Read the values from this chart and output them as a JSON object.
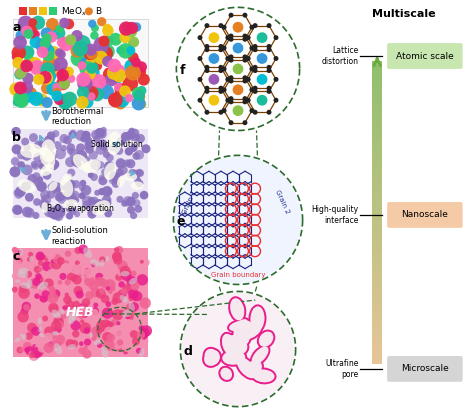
{
  "title": "Multiscale",
  "bg_color": "#ffffff",
  "scale_labels": [
    "Atomic scale",
    "Nanoscale",
    "Microscale"
  ],
  "scale_colors_bg": [
    "#c8e6b0",
    "#f5cba7",
    "#d5d5d5"
  ],
  "left_labels": [
    "Lattice\ndistortion",
    "High-quality\ninterface",
    "Ultrafine\npore"
  ],
  "panel_labels": [
    "a",
    "b",
    "c",
    "d",
    "e",
    "f"
  ],
  "process_labels": [
    "Borothermal\nreduction",
    "Solid-solution\nreaction"
  ],
  "sub_labels_b": [
    "Solid solution",
    "B₂O₃ evaporation"
  ],
  "legend_meo_colors": [
    "#e63030",
    "#e67e22",
    "#f1c40f",
    "#2ecc71",
    "#3498db",
    "#9b59b6"
  ],
  "legend_b_color": "#e67e22",
  "atom_colors": [
    "#e63030",
    "#e67e22",
    "#f1c40f",
    "#2ecc71",
    "#1abc9c",
    "#3498db",
    "#9b59b6",
    "#e91e63",
    "#00bcd4",
    "#ff69b4",
    "#8bc34a"
  ],
  "purple_color": "#8b72be",
  "pink_bg": "#f06292",
  "pink_grain_edge": "#e91e8c",
  "arrow_color": "#6baed6",
  "dashed_color": "#2d6a2d",
  "grain1_color": "#1a237e",
  "grain2_color": "#283593",
  "gb_color": "#e63030"
}
